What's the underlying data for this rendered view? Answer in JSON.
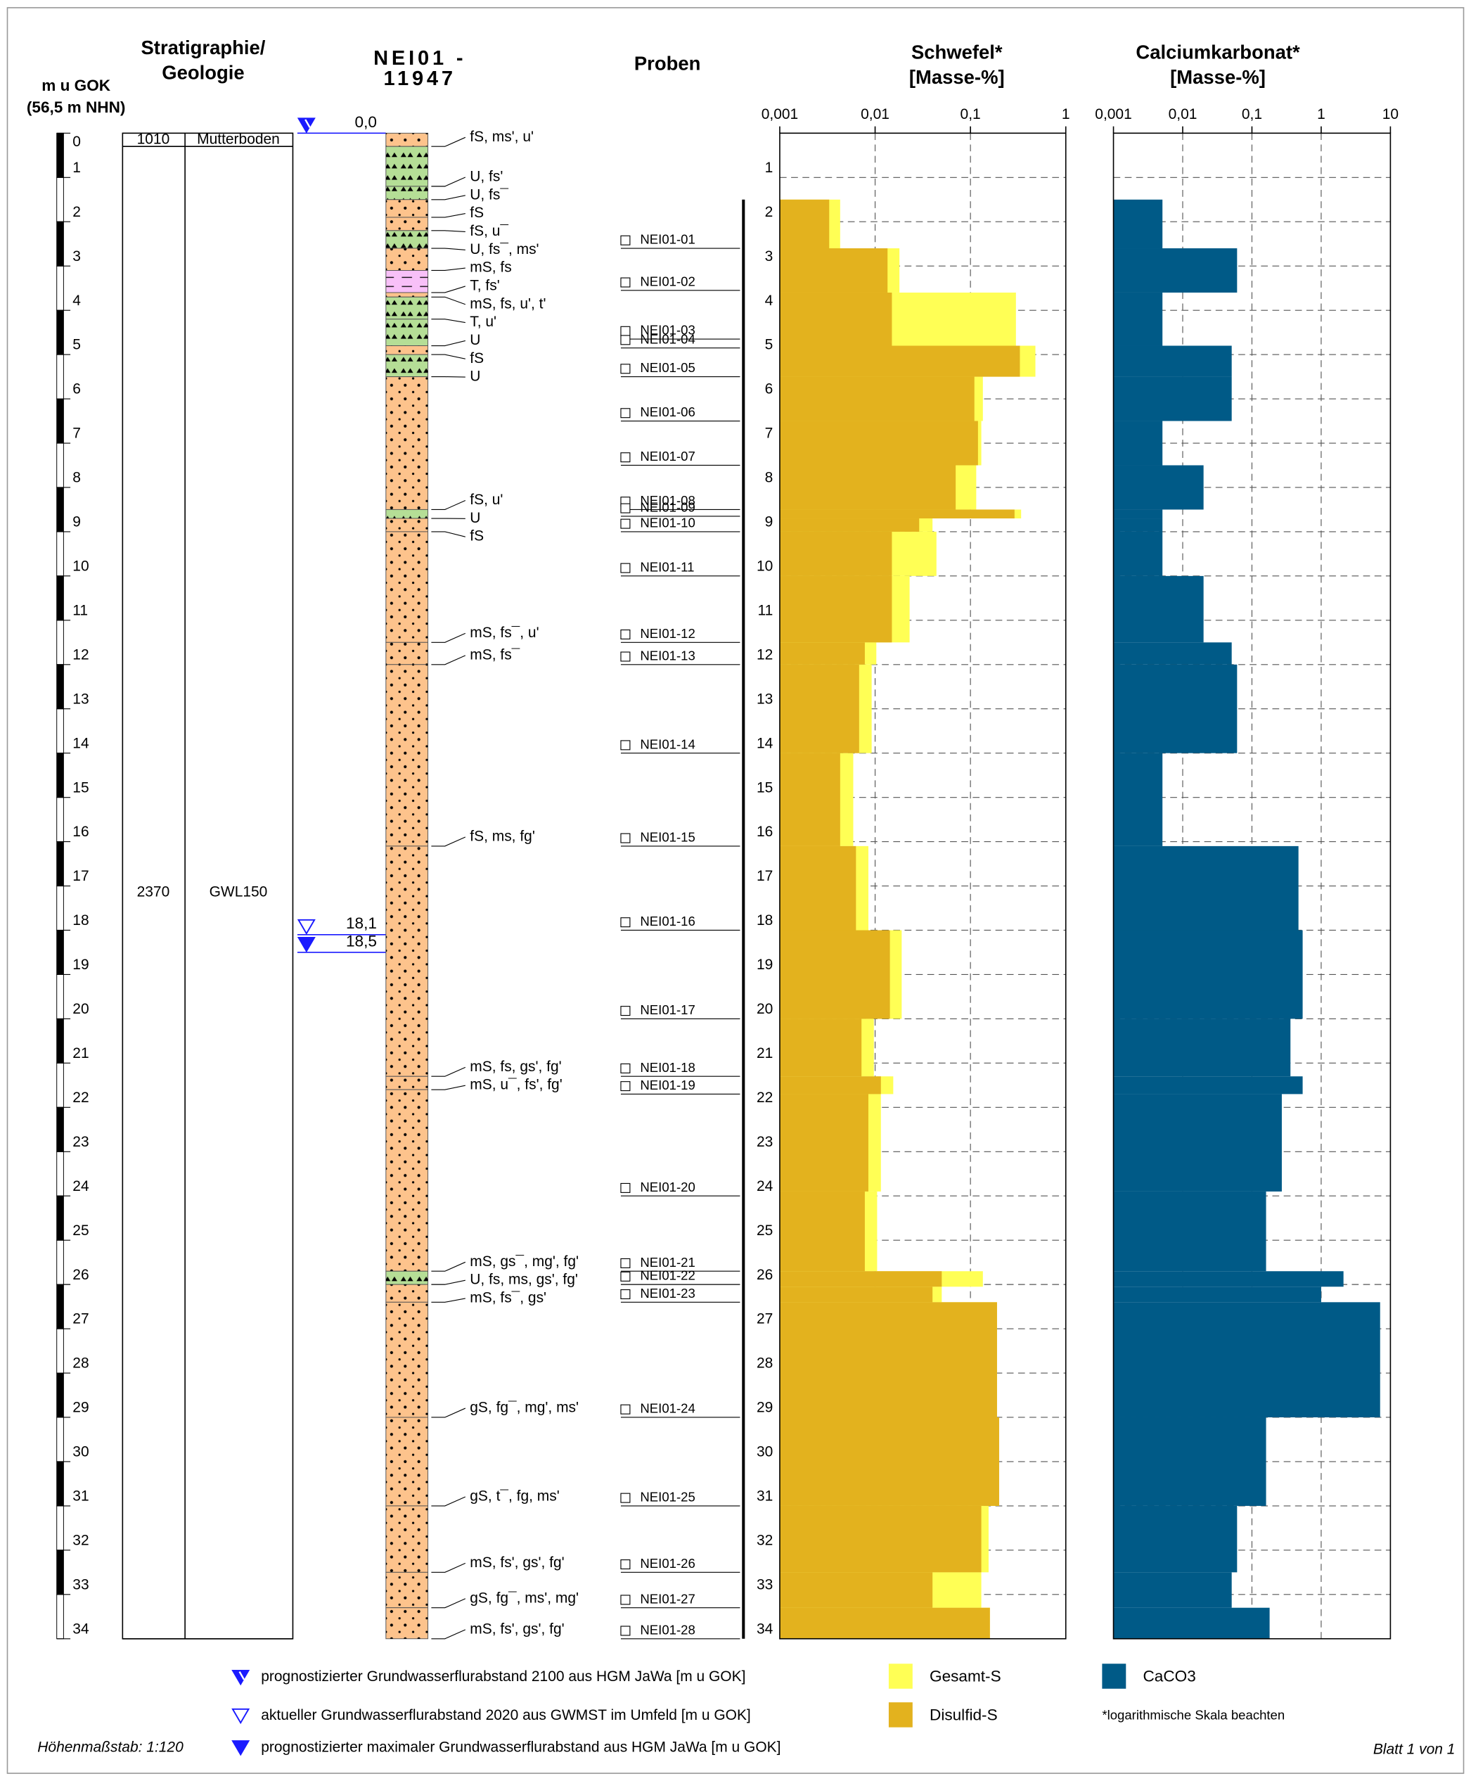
{
  "header": {
    "depth_title": "m u GOK",
    "depth_subtitle": "(56,5 m NHN)",
    "strat_title_1": "Stratigraphie/",
    "strat_title_2": "Geologie",
    "well_1": "NEI01 -",
    "well_2": "11947",
    "samples_title": "Proben"
  },
  "depth_axis": {
    "lim": [
      0,
      34
    ],
    "ticks": [
      0,
      1,
      2,
      3,
      4,
      5,
      6,
      7,
      8,
      9,
      10,
      11,
      12,
      13,
      14,
      15,
      16,
      17,
      18,
      19,
      20,
      21,
      22,
      23,
      24,
      25,
      26,
      27,
      28,
      29,
      30,
      31,
      32,
      33,
      34
    ]
  },
  "stratigraphy": [
    {
      "top": 0,
      "bottom": 0.3,
      "code": "1010",
      "name": "Mutterboden"
    },
    {
      "top": 0.3,
      "bottom": 34,
      "code": "2370",
      "name": "GWL150"
    }
  ],
  "water_levels": [
    {
      "value": 0,
      "label": "0,0",
      "symbol": "forecast"
    },
    {
      "value": 18.1,
      "label": "18,1",
      "symbol": "current"
    },
    {
      "value": 18.5,
      "label": "18,5",
      "symbol": "maximum"
    }
  ],
  "soil_colors": {
    "sand": "#fdc38c",
    "silt": "#b5de96",
    "clay": "#f8c0f8"
  },
  "layers": [
    {
      "top": 0,
      "bottom": 0.3,
      "soil": "sand",
      "label": "fS, ms', u'"
    },
    {
      "top": 0.3,
      "bottom": 1.2,
      "soil": "silt",
      "label": "U, fs'"
    },
    {
      "top": 1.2,
      "bottom": 1.5,
      "soil": "silt",
      "label": "U, fs¯"
    },
    {
      "top": 1.5,
      "bottom": 1.9,
      "soil": "sand",
      "label": "fS"
    },
    {
      "top": 1.9,
      "bottom": 2.2,
      "soil": "sand",
      "label": "fS, u¯"
    },
    {
      "top": 2.2,
      "bottom": 2.6,
      "soil": "silt",
      "label": "U, fs¯, ms'"
    },
    {
      "top": 2.6,
      "bottom": 3.1,
      "soil": "sand",
      "label": "mS, fs"
    },
    {
      "top": 3.1,
      "bottom": 3.6,
      "soil": "clay",
      "label": "T, fs'"
    },
    {
      "top": 3.6,
      "bottom": 3.7,
      "soil": "sand",
      "label": "mS, fs, u', t'"
    },
    {
      "top": 3.7,
      "bottom": 4.2,
      "soil": "silt",
      "label": "T, u'"
    },
    {
      "top": 4.2,
      "bottom": 4.8,
      "soil": "silt",
      "label": "U"
    },
    {
      "top": 4.8,
      "bottom": 5.0,
      "soil": "sand",
      "label": "fS"
    },
    {
      "top": 5.0,
      "bottom": 5.5,
      "soil": "silt",
      "label": "U"
    },
    {
      "top": 5.5,
      "bottom": 8.5,
      "soil": "sand",
      "label": "fS, u'"
    },
    {
      "top": 8.5,
      "bottom": 8.7,
      "soil": "silt",
      "label": "U"
    },
    {
      "top": 8.7,
      "bottom": 9.0,
      "soil": "sand",
      "label": "fS"
    },
    {
      "top": 9.0,
      "bottom": 11.5,
      "soil": "sand",
      "label": "mS, fs¯, u'"
    },
    {
      "top": 11.5,
      "bottom": 12.0,
      "soil": "sand",
      "label": "mS, fs¯"
    },
    {
      "top": 12.0,
      "bottom": 16.1,
      "soil": "sand",
      "label": "fS, ms, fg'"
    },
    {
      "top": 16.1,
      "bottom": 21.3,
      "soil": "sand",
      "label": "mS, fs, gs', fg'"
    },
    {
      "top": 21.3,
      "bottom": 21.6,
      "soil": "sand",
      "label": "mS, u¯, fs', fg'"
    },
    {
      "top": 21.6,
      "bottom": 25.7,
      "soil": "sand",
      "label": "mS, gs¯, mg', fg'"
    },
    {
      "top": 25.7,
      "bottom": 26.0,
      "soil": "silt",
      "label": "U, fs, ms, gs', fg'"
    },
    {
      "top": 26.0,
      "bottom": 26.4,
      "soil": "sand",
      "label": "mS, fs¯, gs'"
    },
    {
      "top": 26.4,
      "bottom": 29.0,
      "soil": "sand",
      "label": "gS, fg¯, mg', ms'"
    },
    {
      "top": 29.0,
      "bottom": 31.0,
      "soil": "sand",
      "label": "gS, t¯, fg, ms'"
    },
    {
      "top": 31.0,
      "bottom": 32.5,
      "soil": "sand",
      "label": "mS, fs', gs', fg'"
    },
    {
      "top": 32.5,
      "bottom": 33.3,
      "soil": "sand",
      "label": "gS, fg¯, ms', mg'"
    },
    {
      "top": 33.3,
      "bottom": 34.0,
      "soil": "sand",
      "label": "mS, fs', gs', fg'"
    }
  ],
  "samples": [
    {
      "name": "NEI01-01",
      "depth": 2.6
    },
    {
      "name": "NEI01-02",
      "depth": 3.55
    },
    {
      "name": "NEI01-03",
      "depth": 4.65
    },
    {
      "name": "NEI01-04",
      "depth": 4.85
    },
    {
      "name": "NEI01-05",
      "depth": 5.5
    },
    {
      "name": "NEI01-06",
      "depth": 6.5
    },
    {
      "name": "NEI01-07",
      "depth": 7.5
    },
    {
      "name": "NEI01-08",
      "depth": 8.5
    },
    {
      "name": "NEI01-09",
      "depth": 8.65
    },
    {
      "name": "NEI01-10",
      "depth": 9.0
    },
    {
      "name": "NEI01-11",
      "depth": 10.0
    },
    {
      "name": "NEI01-12",
      "depth": 11.5
    },
    {
      "name": "NEI01-13",
      "depth": 12.0
    },
    {
      "name": "NEI01-14",
      "depth": 14.0
    },
    {
      "name": "NEI01-15",
      "depth": 16.1
    },
    {
      "name": "NEI01-16",
      "depth": 18.0
    },
    {
      "name": "NEI01-17",
      "depth": 20.0
    },
    {
      "name": "NEI01-18",
      "depth": 21.3
    },
    {
      "name": "NEI01-19",
      "depth": 21.7
    },
    {
      "name": "NEI01-20",
      "depth": 24.0
    },
    {
      "name": "NEI01-21",
      "depth": 25.7
    },
    {
      "name": "NEI01-22",
      "depth": 26.0
    },
    {
      "name": "NEI01-23",
      "depth": 26.4
    },
    {
      "name": "NEI01-24",
      "depth": 29.0
    },
    {
      "name": "NEI01-25",
      "depth": 31.0
    },
    {
      "name": "NEI01-26",
      "depth": 32.5
    },
    {
      "name": "NEI01-27",
      "depth": 33.3
    },
    {
      "name": "NEI01-28",
      "depth": 34.0
    }
  ],
  "chart_data": [
    {
      "type": "bar",
      "orientation": "horizontal",
      "log": true,
      "grid": true,
      "ytick_labels": true,
      "title": "Schwefel*",
      "subtitle": "[Masse-%]",
      "xlim": [
        0.001,
        1
      ],
      "xticks": [
        {
          "value": 0.001,
          "label": "0,001"
        },
        {
          "value": 0.01,
          "label": "0,01"
        },
        {
          "value": 0.1,
          "label": "0,1"
        },
        1
      ],
      "ylim": [
        0,
        34
      ],
      "yticks": [
        1,
        2,
        3,
        4,
        5,
        6,
        7,
        8,
        9,
        10,
        11,
        12,
        13,
        14,
        15,
        16,
        17,
        18,
        19,
        20,
        21,
        22,
        23,
        24,
        25,
        26,
        27,
        28,
        29,
        30,
        31,
        32,
        33,
        34
      ],
      "depth_bins": [
        1.5,
        2.6,
        3.6,
        4.8,
        5.5,
        6.5,
        7.5,
        8.5,
        8.7,
        9.0,
        10.0,
        11.5,
        12.0,
        14.0,
        16.1,
        18.0,
        20.0,
        21.3,
        21.7,
        23.9,
        25.7,
        26.05,
        26.4,
        29.0,
        31.0,
        32.5,
        33.3,
        34.0
      ],
      "series": [
        {
          "name": "Gesamt-S",
          "color": "#ffff55",
          "values": [
            0.0043,
            0.018,
            0.3,
            0.48,
            0.135,
            0.13,
            0.115,
            0.34,
            0.04,
            0.044,
            0.023,
            0.0103,
            0.0092,
            0.0059,
            0.0085,
            0.019,
            0.0097,
            0.0155,
            0.0115,
            0.0105,
            0.135,
            0.05,
            0.19,
            0.2,
            0.155,
            0.13,
            0.16
          ]
        },
        {
          "name": "Disulfid-S",
          "color": "#e3b21e",
          "values": [
            0.0033,
            0.0135,
            0.015,
            0.33,
            0.11,
            0.12,
            0.07,
            0.29,
            0.029,
            0.015,
            0.015,
            0.0078,
            0.0068,
            0.0043,
            0.0063,
            0.0143,
            0.0072,
            0.0115,
            0.0085,
            0.0078,
            0.05,
            0.04,
            0.19,
            0.2,
            0.13,
            0.04,
            0.16
          ]
        }
      ]
    },
    {
      "type": "bar",
      "orientation": "horizontal",
      "log": true,
      "grid": true,
      "ytick_labels": false,
      "title": "Calciumkarbonat*",
      "subtitle": "[Masse-%]",
      "xlim": [
        0.001,
        10
      ],
      "xticks": [
        {
          "value": 0.001,
          "label": "0,001"
        },
        {
          "value": 0.01,
          "label": "0,01"
        },
        {
          "value": 0.1,
          "label": "0,1"
        },
        1,
        10
      ],
      "ylim": [
        0,
        34
      ],
      "yticks": [
        1,
        2,
        3,
        4,
        5,
        6,
        7,
        8,
        9,
        10,
        11,
        12,
        13,
        14,
        15,
        16,
        17,
        18,
        19,
        20,
        21,
        22,
        23,
        24,
        25,
        26,
        27,
        28,
        29,
        30,
        31,
        32,
        33,
        34
      ],
      "depth_bins": [
        1.5,
        2.6,
        3.6,
        4.8,
        5.5,
        6.5,
        7.5,
        8.5,
        8.7,
        9.0,
        10.0,
        11.5,
        12.0,
        14.0,
        16.1,
        18.0,
        20.0,
        21.3,
        21.7,
        23.9,
        25.7,
        26.05,
        26.4,
        29.0,
        31.0,
        32.5,
        33.3,
        34.0
      ],
      "series": [
        {
          "name": "CaCO3",
          "color": "#005a87",
          "values": [
            0.0051,
            0.061,
            0.0051,
            0.051,
            0.051,
            0.0051,
            0.02,
            0.0051,
            0.0051,
            0.0051,
            0.02,
            0.051,
            0.061,
            0.0051,
            0.47,
            0.54,
            0.36,
            0.54,
            0.27,
            0.16,
            2.1,
            1.0,
            7.1,
            0.16,
            0.061,
            0.051,
            0.18
          ]
        }
      ]
    }
  ],
  "legend": {
    "water": [
      {
        "symbol": "forecast",
        "text": "prognostizierter Grundwasserflurabstand 2100 aus HGM JaWa [m u GOK]"
      },
      {
        "symbol": "current",
        "text": "aktueller Grundwasserflurabstand 2020 aus GWMST im Umfeld [m u GOK]"
      },
      {
        "symbol": "maximum",
        "text": "prognostizierter maximaler Grundwasserflurabstand aus HGM JaWa [m u GOK]"
      }
    ],
    "note": "*logarithmische Skala beachten"
  },
  "footer": {
    "scale": "Höhenmaßstab: 1:120",
    "sheet": "Blatt 1 von 1"
  }
}
